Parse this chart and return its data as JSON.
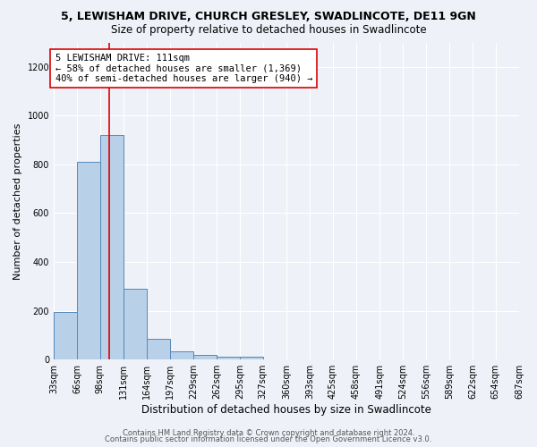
{
  "title": "5, LEWISHAM DRIVE, CHURCH GRESLEY, SWADLINCOTE, DE11 9GN",
  "subtitle": "Size of property relative to detached houses in Swadlincote",
  "xlabel": "Distribution of detached houses by size in Swadlincote",
  "ylabel": "Number of detached properties",
  "bin_edges": [
    33,
    66,
    98,
    131,
    164,
    197,
    229,
    262,
    295,
    327,
    360,
    393,
    425,
    458,
    491,
    524,
    556,
    589,
    622,
    654,
    687
  ],
  "bin_heights": [
    195,
    810,
    920,
    290,
    85,
    35,
    20,
    12,
    10,
    0,
    0,
    0,
    0,
    0,
    0,
    0,
    0,
    0,
    0,
    0
  ],
  "bar_color": "#b8d0e8",
  "bar_edge_color": "#5588bb",
  "bar_edge_width": 0.7,
  "red_line_x": 111,
  "red_line_color": "#dd0000",
  "annotation_text": "5 LEWISHAM DRIVE: 111sqm\n← 58% of detached houses are smaller (1,369)\n40% of semi-detached houses are larger (940) →",
  "ylim": [
    0,
    1300
  ],
  "yticks": [
    0,
    200,
    400,
    600,
    800,
    1000,
    1200
  ],
  "background_color": "#eef2f8",
  "plot_bg_color": "#eef2f8",
  "grid_color": "#ffffff",
  "footer_line1": "Contains HM Land Registry data © Crown copyright and database right 2024.",
  "footer_line2": "Contains public sector information licensed under the Open Government Licence v3.0.",
  "title_fontsize": 9,
  "subtitle_fontsize": 8.5,
  "xlabel_fontsize": 8.5,
  "ylabel_fontsize": 8,
  "tick_fontsize": 7,
  "annotation_fontsize": 7.5,
  "footer_fontsize": 6
}
